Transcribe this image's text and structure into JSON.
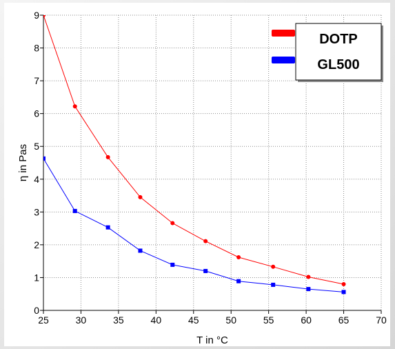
{
  "colors": {
    "DOTP": "#ff0000",
    "GL500": "#0000ff",
    "grid": "#8a8a8a",
    "axis": "#000000",
    "frame_gradient_start": "#f4f4f4",
    "frame_gradient_end": "#d6d6d6"
  },
  "chart_data": {
    "type": "line",
    "title": "",
    "xlabel": "T in °C",
    "ylabel": "η in Pas",
    "xlim": [
      25,
      70
    ],
    "ylim": [
      0,
      9
    ],
    "xticks": [
      25,
      30,
      35,
      40,
      45,
      50,
      55,
      60,
      65,
      70
    ],
    "yticks": [
      0,
      1,
      2,
      3,
      4,
      5,
      6,
      7,
      8,
      9
    ],
    "grid": true,
    "legend_position": "top-right",
    "series": [
      {
        "name": "DOTP",
        "color": "#ff0000",
        "marker": "circle",
        "points": [
          [
            25.0,
            9.0
          ],
          [
            29.2,
            6.22
          ],
          [
            33.6,
            4.67
          ],
          [
            37.9,
            3.45
          ],
          [
            42.2,
            2.66
          ],
          [
            46.6,
            2.11
          ],
          [
            51.0,
            1.62
          ],
          [
            55.6,
            1.33
          ],
          [
            60.3,
            1.02
          ],
          [
            65.0,
            0.8
          ]
        ]
      },
      {
        "name": "GL500",
        "color": "#0000ff",
        "marker": "square",
        "points": [
          [
            25.0,
            4.63
          ],
          [
            29.2,
            3.03
          ],
          [
            33.6,
            2.53
          ],
          [
            37.9,
            1.82
          ],
          [
            42.2,
            1.39
          ],
          [
            46.6,
            1.2
          ],
          [
            51.0,
            0.89
          ],
          [
            55.6,
            0.78
          ],
          [
            60.3,
            0.65
          ],
          [
            65.0,
            0.56
          ]
        ]
      }
    ]
  }
}
